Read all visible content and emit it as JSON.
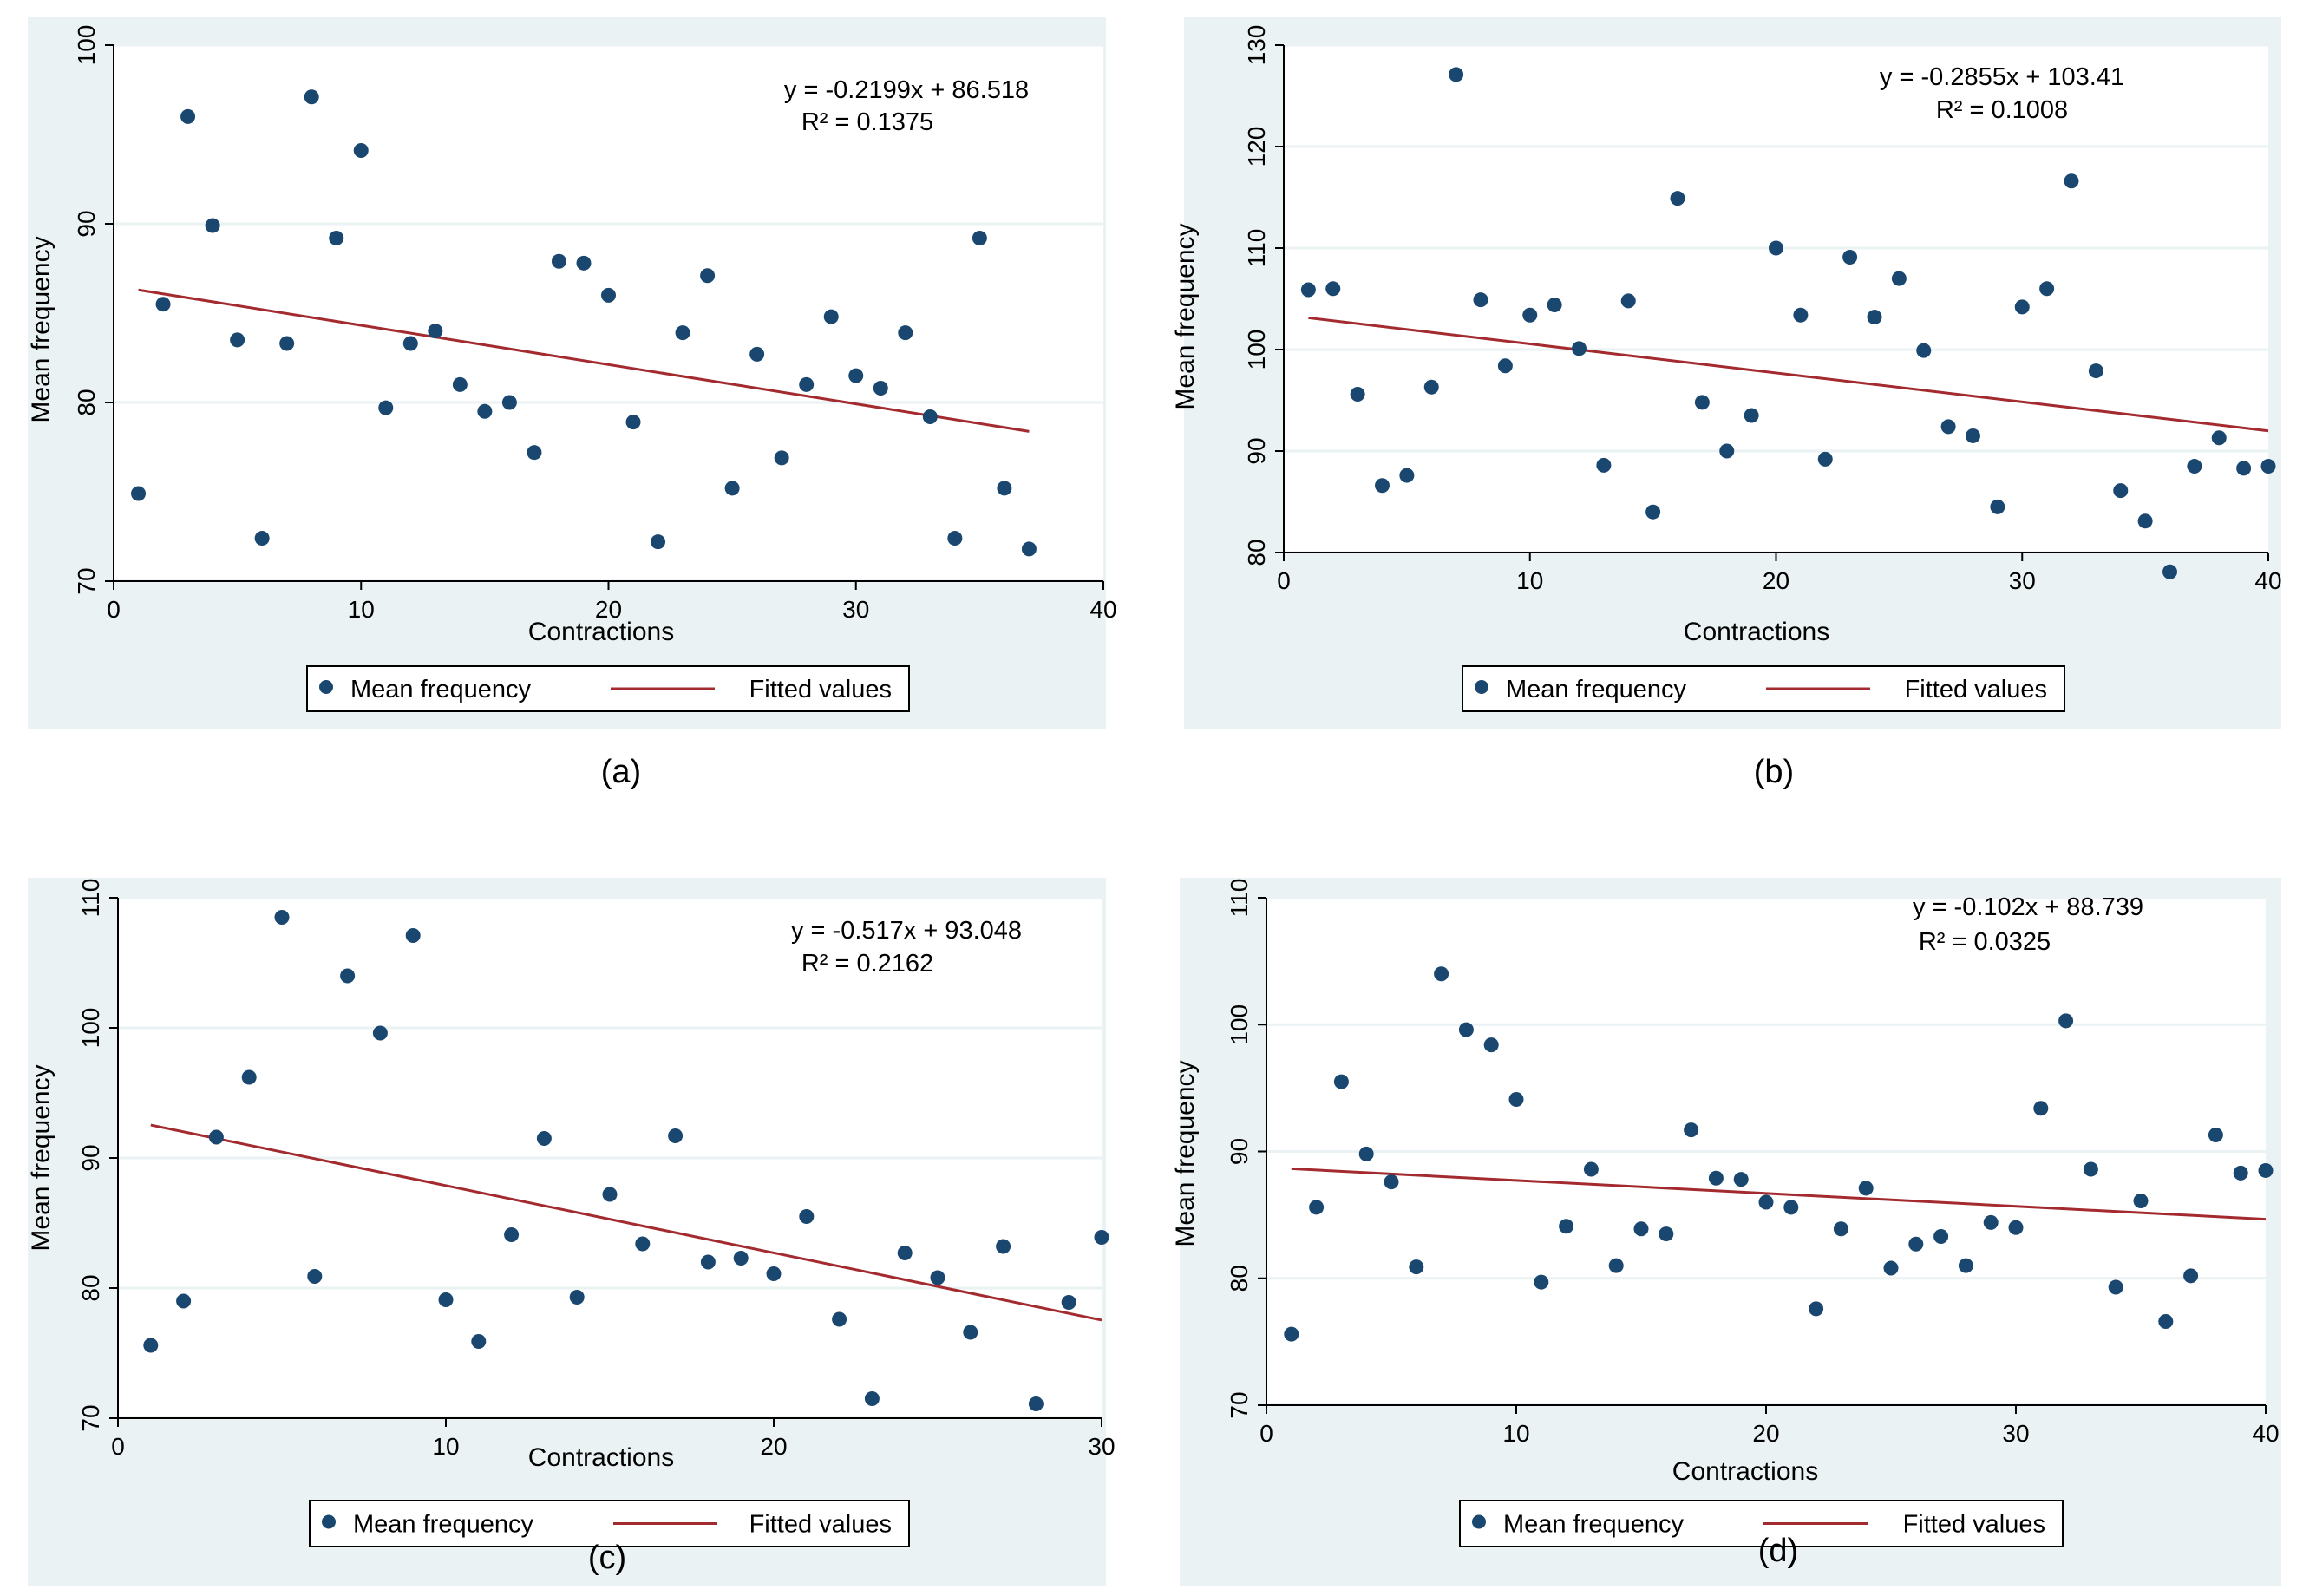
{
  "colors": {
    "points": "#1a476f",
    "fit": "#a32a2f",
    "panel_bg": "#eaf2f3"
  },
  "chart_data": [
    {
      "panel": "a",
      "caption": "(a)",
      "type": "scatter",
      "xlabel": "Contractions",
      "ylabel": "Mean frequency",
      "xlim": [
        0,
        40
      ],
      "ylim": [
        70,
        100
      ],
      "xticks": [
        0,
        10,
        20,
        30,
        40
      ],
      "yticks": [
        70,
        80,
        90,
        100
      ],
      "xtick_labels": [
        "0",
        "10",
        "20",
        "30",
        "40"
      ],
      "ytick_labels": [
        "70",
        "80",
        "90",
        "100"
      ],
      "equation": "y = -0.2199x + 86.518",
      "r2": "R² = 0.1375",
      "legend": [
        "Mean frequency",
        "Fitted values"
      ],
      "fit": {
        "slope": -0.2199,
        "intercept": 86.518,
        "x_range": [
          1,
          37
        ]
      },
      "series": [
        {
          "name": "Mean frequency",
          "x": [
            1,
            2,
            3,
            4,
            5,
            6,
            7,
            8,
            9,
            10,
            11,
            12,
            13,
            14,
            15,
            16,
            17,
            18,
            19,
            20,
            21,
            22,
            23,
            24,
            25,
            26,
            27,
            28,
            29,
            30,
            31,
            32,
            33,
            34,
            35,
            36,
            37
          ],
          "y": [
            74.9,
            85.5,
            96.0,
            89.9,
            83.5,
            72.4,
            83.3,
            97.1,
            89.2,
            94.1,
            79.7,
            83.3,
            84.0,
            81.0,
            79.5,
            80.0,
            77.2,
            87.9,
            87.8,
            86.0,
            78.9,
            72.2,
            83.9,
            87.1,
            75.2,
            82.7,
            76.9,
            81.0,
            84.8,
            81.5,
            80.8,
            83.9,
            79.2,
            72.4,
            89.2,
            75.2,
            71.8
          ]
        }
      ]
    },
    {
      "panel": "b",
      "caption": "(b)",
      "type": "scatter",
      "xlabel": "Contractions",
      "ylabel": "Mean frequency",
      "xlim": [
        0,
        40
      ],
      "ylim": [
        80,
        130
      ],
      "xticks": [
        0,
        10,
        20,
        30,
        40
      ],
      "yticks": [
        80,
        90,
        100,
        110,
        120,
        130
      ],
      "xtick_labels": [
        "0",
        "10",
        "20",
        "30",
        "40"
      ],
      "ytick_labels": [
        "80",
        "90",
        "100",
        "110",
        "120",
        "130"
      ],
      "equation": "y = -0.2855x + 103.41",
      "r2": "R² = 0.1008",
      "legend": [
        "Mean frequency",
        "Fitted values"
      ],
      "fit": {
        "slope": -0.2855,
        "intercept": 103.41,
        "x_range": [
          1,
          40
        ]
      },
      "series": [
        {
          "name": "Mean frequency",
          "x": [
            1,
            2,
            3,
            4,
            5,
            6,
            7,
            8,
            9,
            10,
            11,
            12,
            13,
            14,
            15,
            16,
            17,
            18,
            19,
            20,
            21,
            22,
            23,
            24,
            25,
            26,
            27,
            28,
            29,
            30,
            31,
            32,
            33,
            34,
            35,
            36,
            37,
            38,
            39,
            40
          ],
          "y": [
            105.9,
            106.0,
            95.6,
            86.6,
            87.6,
            96.3,
            127.1,
            104.9,
            98.4,
            103.4,
            104.4,
            100.1,
            88.6,
            104.8,
            84.0,
            114.9,
            94.8,
            90.0,
            93.5,
            110.0,
            103.4,
            89.2,
            109.1,
            103.2,
            107.0,
            99.9,
            92.4,
            91.5,
            84.5,
            104.2,
            106.0,
            116.6,
            97.9,
            86.1,
            83.1,
            78.1,
            88.5,
            91.3,
            88.3,
            88.5
          ]
        }
      ]
    },
    {
      "panel": "c",
      "caption": "(c)",
      "type": "scatter",
      "xlabel": "Contractions",
      "ylabel": "Mean frequency",
      "xlim": [
        0,
        30
      ],
      "ylim": [
        70,
        110
      ],
      "xticks": [
        0,
        10,
        20,
        30
      ],
      "yticks": [
        70,
        80,
        90,
        100,
        110
      ],
      "xtick_labels": [
        "0",
        "10",
        "20",
        "30"
      ],
      "ytick_labels": [
        "70",
        "80",
        "90",
        "100",
        "110"
      ],
      "equation": "y = -0.517x + 93.048",
      "r2": "R² = 0.2162",
      "legend": [
        "Mean frequency",
        "Fitted values"
      ],
      "fit": {
        "slope": -0.517,
        "intercept": 93.048,
        "x_range": [
          1,
          30
        ]
      },
      "series": [
        {
          "name": "Mean frequency",
          "x": [
            1,
            2,
            3,
            4,
            5,
            6,
            7,
            8,
            9,
            10,
            11,
            12,
            13,
            14,
            15,
            16,
            17,
            18,
            19,
            20,
            21,
            22,
            23,
            24,
            25,
            26,
            27,
            28,
            29,
            30
          ],
          "y": [
            75.6,
            79.0,
            91.6,
            96.2,
            108.5,
            80.9,
            104.0,
            99.6,
            107.1,
            79.1,
            75.9,
            84.1,
            91.5,
            79.3,
            87.2,
            83.4,
            91.7,
            82.0,
            82.3,
            81.1,
            85.5,
            77.6,
            71.5,
            82.7,
            80.8,
            76.6,
            83.2,
            71.1,
            78.9,
            83.9
          ]
        }
      ]
    },
    {
      "panel": "d",
      "caption": "(d)",
      "type": "scatter",
      "xlabel": "Contractions",
      "ylabel": "Mean frequency",
      "xlim": [
        0,
        40
      ],
      "ylim": [
        70,
        110
      ],
      "xticks": [
        0,
        10,
        20,
        30,
        40
      ],
      "yticks": [
        70,
        80,
        90,
        100,
        110
      ],
      "xtick_labels": [
        "0",
        "10",
        "20",
        "30",
        "40"
      ],
      "ytick_labels": [
        "70",
        "80",
        "90",
        "100",
        "110"
      ],
      "equation": "y = -0.102x + 88.739",
      "r2": "R² = 0.0325",
      "legend": [
        "Mean frequency",
        "Fitted values"
      ],
      "fit": {
        "slope": -0.102,
        "intercept": 88.739,
        "x_range": [
          1,
          40
        ]
      },
      "series": [
        {
          "name": "Mean frequency",
          "x": [
            1,
            2,
            3,
            4,
            5,
            6,
            7,
            8,
            9,
            10,
            11,
            12,
            13,
            14,
            15,
            16,
            17,
            18,
            19,
            20,
            21,
            22,
            23,
            24,
            25,
            26,
            27,
            28,
            29,
            30,
            31,
            32,
            33,
            34,
            35,
            36,
            37,
            38,
            39,
            40
          ],
          "y": [
            75.6,
            85.6,
            95.5,
            89.8,
            87.6,
            80.9,
            104.0,
            99.6,
            98.4,
            94.1,
            79.7,
            84.1,
            88.6,
            81.0,
            83.9,
            83.5,
            91.7,
            87.9,
            87.8,
            86.0,
            85.6,
            77.6,
            83.9,
            87.1,
            80.8,
            82.7,
            83.3,
            81.0,
            84.4,
            84.0,
            93.4,
            100.3,
            88.6,
            79.3,
            86.1,
            76.6,
            80.2,
            91.3,
            88.3,
            88.5
          ]
        }
      ]
    }
  ]
}
